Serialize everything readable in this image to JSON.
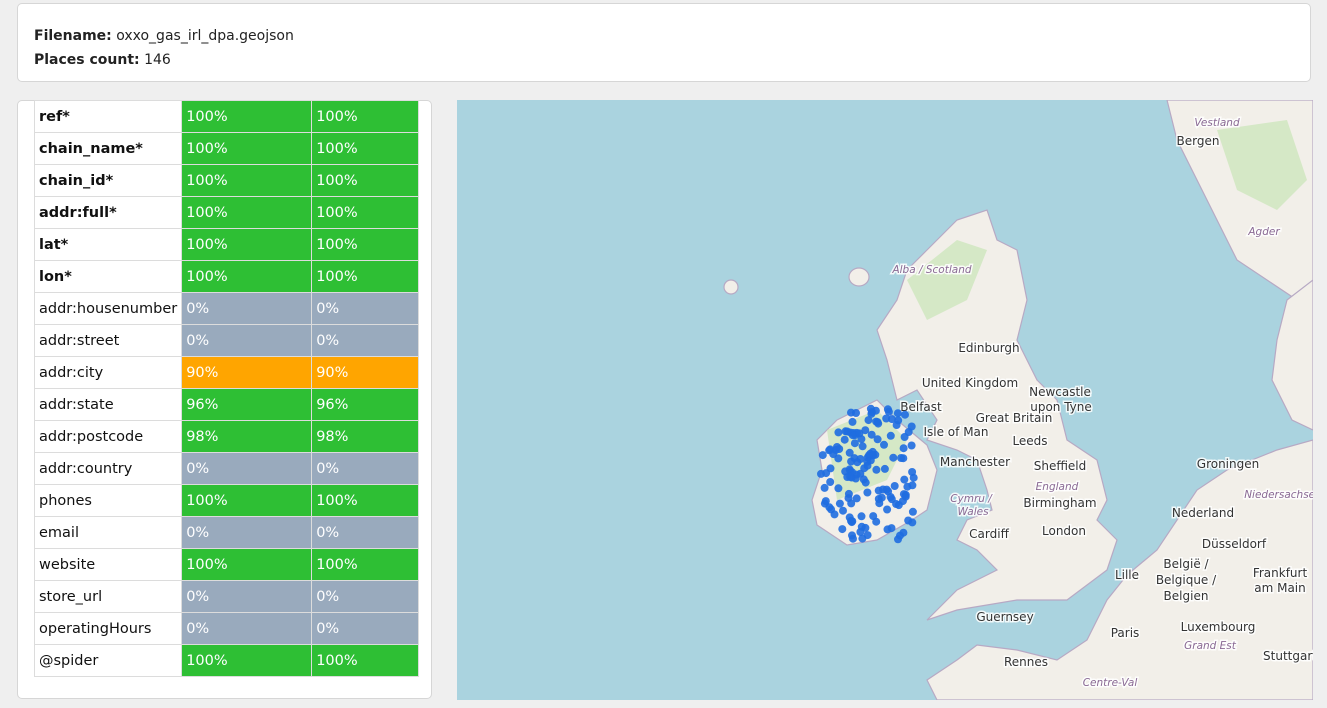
{
  "header": {
    "filename_label": "Filename:",
    "filename": "oxxo_gas_irl_dpa.geojson",
    "count_label": "Places count:",
    "count": "146"
  },
  "table": {
    "rows": [
      [
        "ref*",
        "100%",
        "100%"
      ],
      [
        "chain_name*",
        "100%",
        "100%"
      ],
      [
        "chain_id*",
        "100%",
        "100%"
      ],
      [
        "addr:full*",
        "100%",
        "100%"
      ],
      [
        "lat*",
        "100%",
        "100%"
      ],
      [
        "lon*",
        "100%",
        "100%"
      ],
      [
        "addr:housenumber",
        "0%",
        "0%"
      ],
      [
        "addr:street",
        "0%",
        "0%"
      ],
      [
        "addr:city",
        "90%",
        "90%"
      ],
      [
        "addr:state",
        "96%",
        "96%"
      ],
      [
        "addr:postcode",
        "98%",
        "98%"
      ],
      [
        "addr:country",
        "0%",
        "0%"
      ],
      [
        "phones",
        "100%",
        "100%"
      ],
      [
        "email",
        "0%",
        "0%"
      ],
      [
        "website",
        "100%",
        "100%"
      ],
      [
        "store_url",
        "0%",
        "0%"
      ],
      [
        "operatingHours",
        "0%",
        "0%"
      ],
      [
        "@spider",
        "100%",
        "100%"
      ]
    ]
  },
  "map": {
    "labels": [
      "Vestland",
      "Bergen",
      "Agder",
      "Alba / Scotland",
      "Edinburgh",
      "United Kingdom",
      "Newcastle",
      "upon Tyne",
      "Belfast",
      "Great Britain",
      "Isle of Man",
      "Leeds",
      "Manchester",
      "Sheffield",
      "England",
      "Cymru /",
      "Wales",
      "Birmingham",
      "Cardiff",
      "London",
      "Guernsey",
      "Rennes",
      "Paris",
      "Luxembourg",
      "Grand Est",
      "Stuttgart",
      "Frankfurt",
      "am Main",
      "België /",
      "Belgique /",
      "Belgien",
      "Lille",
      "Nederland",
      "Düsseldorf",
      "Groningen",
      "Niedersachsen",
      "Centre-Val"
    ]
  }
}
